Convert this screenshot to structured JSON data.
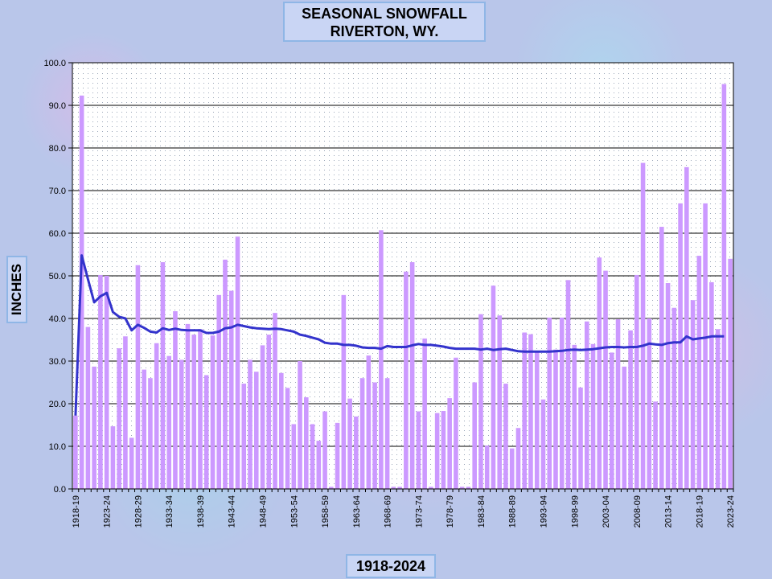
{
  "chart_data": {
    "type": "bar",
    "title_line1": "SEASONAL  SNOWFALL",
    "title_line2": "RIVERTON,  WY.",
    "ylabel": "INCHES",
    "xlabel": "1918-2024",
    "ylim": [
      0,
      100
    ],
    "yticks": [
      "0.0",
      "10.0",
      "20.0",
      "30.0",
      "40.0",
      "50.0",
      "60.0",
      "70.0",
      "80.0",
      "90.0",
      "100.0"
    ],
    "xtick_labels": [
      "1918-19",
      "1923-24",
      "1928-29",
      "1933-34",
      "1938-39",
      "1943-44",
      "1948-49",
      "1953-54",
      "1958-59",
      "1963-64",
      "1968-69",
      "1973-74",
      "1978-79",
      "1983-84",
      "1988-89",
      "1993-94",
      "1998-99",
      "2003-04",
      "2008-09",
      "2013-14",
      "2018-19",
      "2023-24"
    ],
    "grid": true,
    "colors": {
      "bars": "#cc99ff",
      "line": "#3333cc",
      "plot_bg": "#ffffff",
      "grid": "#000000"
    },
    "series": [
      {
        "kind": "bar",
        "values": [
          17.2,
          92.3,
          38.0,
          28.7,
          50.2,
          50.0,
          14.7,
          33.0,
          35.8,
          12.0,
          52.5,
          28.0,
          26.0,
          34.2,
          53.2,
          31.2,
          41.7,
          30.3,
          38.7,
          36.2,
          37.5,
          26.7,
          36.0,
          45.5,
          53.8,
          46.5,
          59.2,
          24.7,
          30.3,
          27.5,
          33.7,
          36.2,
          41.3,
          27.2,
          23.7,
          15.2,
          30.0,
          21.5,
          15.2,
          11.3,
          18.2,
          0.5,
          15.5,
          45.5,
          21.2,
          17.0,
          26.0,
          31.3,
          25.0,
          60.7,
          26.0,
          0.5,
          0.5,
          51.0,
          53.2,
          18.2,
          35.3,
          0.5,
          17.8,
          18.3,
          21.3,
          30.8,
          0.5,
          0.5,
          25.0,
          41.0,
          10.2,
          47.7,
          40.7,
          24.7,
          9.5,
          14.3,
          36.7,
          36.3,
          32.3,
          21.0,
          40.2,
          32.7,
          40.2,
          49.0,
          33.8,
          23.8,
          39.3,
          34.0,
          54.3,
          51.2,
          32.0,
          39.8,
          28.7,
          37.2,
          50.2,
          76.5,
          40.0,
          20.5,
          61.5,
          48.3,
          42.5,
          67.0,
          75.5,
          44.3,
          54.7,
          67.0,
          48.5,
          37.5,
          95.0,
          54.0
        ]
      },
      {
        "kind": "line",
        "values": [
          17.2,
          54.8,
          49.2,
          43.8,
          45.2,
          46.0,
          41.5,
          40.4,
          40.0,
          37.2,
          38.5,
          37.8,
          36.9,
          36.7,
          37.7,
          37.3,
          37.6,
          37.3,
          37.2,
          37.2,
          37.2,
          36.6,
          36.6,
          36.9,
          37.7,
          37.9,
          38.5,
          38.2,
          37.9,
          37.7,
          37.6,
          37.5,
          37.6,
          37.5,
          37.2,
          36.9,
          36.2,
          35.9,
          35.5,
          35.1,
          34.3,
          34.1,
          34.1,
          33.8,
          33.8,
          33.6,
          33.2,
          33.1,
          33.1,
          32.9,
          33.5,
          33.3,
          33.3,
          33.3,
          33.7,
          34.0,
          33.8,
          33.8,
          33.6,
          33.4,
          33.1,
          32.9,
          32.9,
          32.9,
          32.9,
          32.7,
          32.9,
          32.6,
          32.8,
          32.9,
          32.6,
          32.3,
          32.2,
          32.2,
          32.2,
          32.2,
          32.2,
          32.3,
          32.4,
          32.6,
          32.7,
          32.6,
          32.7,
          32.8,
          33.0,
          33.2,
          33.3,
          33.3,
          33.2,
          33.3,
          33.3,
          33.6,
          34.1,
          33.9,
          33.8,
          34.2,
          34.4,
          34.4,
          35.8,
          35.1,
          35.3,
          35.5,
          35.8,
          35.8,
          35.8
        ]
      }
    ]
  }
}
